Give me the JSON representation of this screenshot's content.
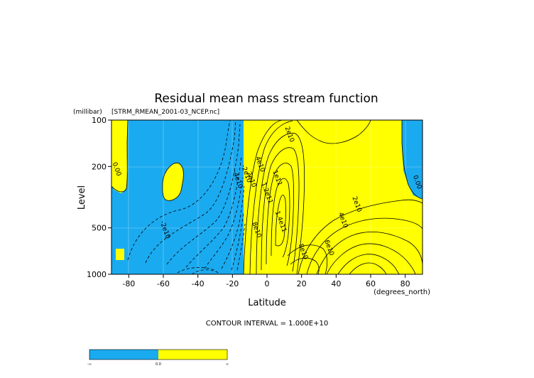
{
  "chart_data": {
    "type": "contour",
    "title": "Residual mean mass stream function",
    "subtitle": "[STRM_RMEAN_2001-03_NCEP.nc]",
    "xlabel": "Latitude",
    "xunits": "(degrees_north)",
    "ylabel": "Level",
    "yunits": "(millibar)",
    "xlim": [
      -90,
      90
    ],
    "ylim": [
      1000,
      100
    ],
    "yscale": "log",
    "x_ticks": [
      -80,
      -60,
      -40,
      -20,
      0,
      20,
      40,
      60,
      80
    ],
    "y_ticks": [
      100,
      200,
      500,
      1000
    ],
    "contour_interval_text": "CONTOUR INTERVAL = 1.000E+10",
    "contour_interval": 10000000000,
    "fill_colors": {
      "negative": "#1aaaf0",
      "positive": "#ffff00"
    },
    "colorbar_labels": [
      "-∞",
      "0.0",
      "∞"
    ],
    "contour_labels": [
      {
        "text": "0.00",
        "lat": -88,
        "lev": 210
      },
      {
        "text": "-2e10",
        "lat": -60,
        "lev": 520
      },
      {
        "text": "-4e10",
        "lat": -18,
        "lev": 245
      },
      {
        "text": "-2e10",
        "lat": -13,
        "lev": 225
      },
      {
        "text": "2e10",
        "lat": -10,
        "lev": 245
      },
      {
        "text": "4e10",
        "lat": -5,
        "lev": 195
      },
      {
        "text": "2e10",
        "lat": 12,
        "lev": 125
      },
      {
        "text": "1e11",
        "lat": 5,
        "lev": 240
      },
      {
        "text": "1.2e11",
        "lat": -1,
        "lev": 300
      },
      {
        "text": "1.4e11",
        "lat": 7,
        "lev": 460
      },
      {
        "text": "8e10",
        "lat": -7,
        "lev": 520
      },
      {
        "text": "8e10",
        "lat": 20,
        "lev": 720
      },
      {
        "text": "2e10",
        "lat": 51,
        "lev": 355
      },
      {
        "text": "4e10",
        "lat": 43,
        "lev": 450
      },
      {
        "text": "6e10",
        "lat": 35,
        "lev": 680
      },
      {
        "text": "0.00",
        "lat": 86,
        "lev": 255
      }
    ]
  }
}
